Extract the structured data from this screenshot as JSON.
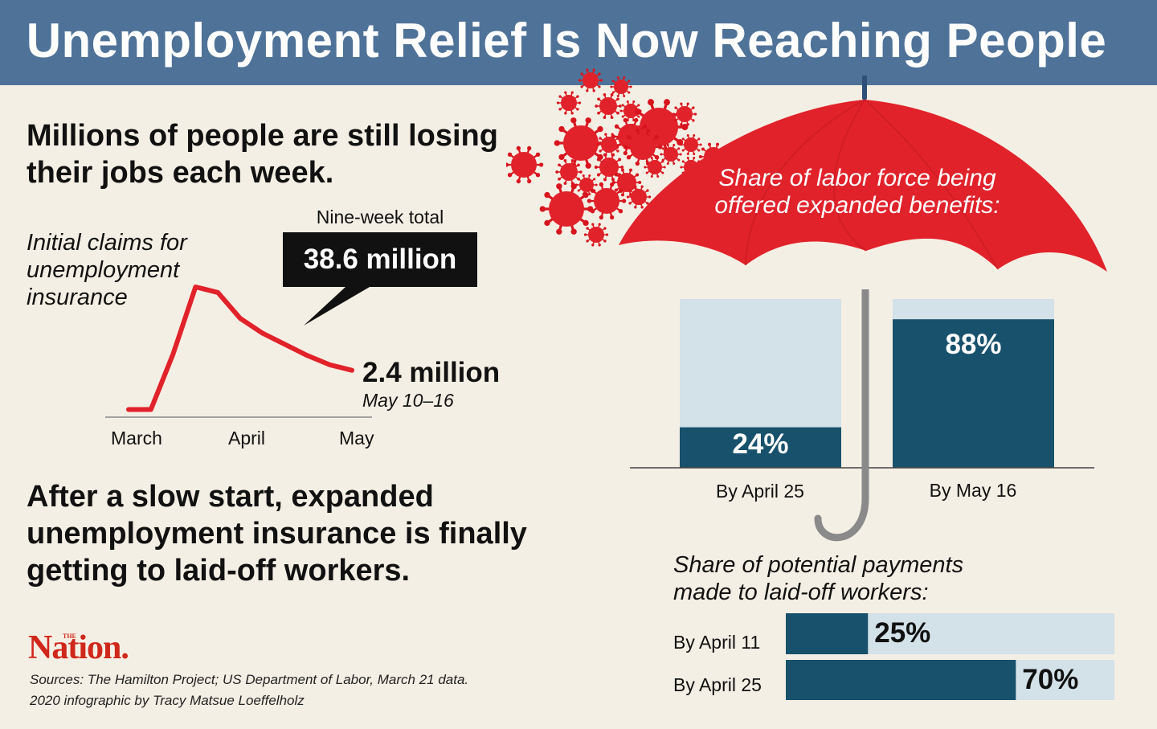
{
  "title": "Unemployment Relief Is Now Reaching People",
  "subhead_1": "Millions of people are still losing their jobs each week.",
  "subhead_2": "After a slow start, expanded unemployment insurance is finally getting to laid-off workers.",
  "colors": {
    "banner": "#4f7298",
    "accent_red": "#e1222b",
    "dark_teal": "#18516c",
    "light_blue": "#d3e1e8",
    "background": "#f4efe4"
  },
  "chart_data": [
    {
      "type": "line",
      "label": "Initial claims for unemployment insurance",
      "x_ticks": [
        "March",
        "April",
        "May"
      ],
      "values_millions": [
        0.28,
        0.28,
        3.3,
        6.9,
        6.6,
        5.2,
        4.4,
        3.8,
        3.2,
        2.7,
        2.4
      ],
      "callout_label": "Nine-week total",
      "callout_value": "38.6 million",
      "end_value": "2.4 million",
      "end_date": "May 10–16",
      "ylim": [
        0,
        7.5
      ]
    },
    {
      "type": "bar",
      "title": "Share of labor force being offered expanded benefits:",
      "categories": [
        "By April 25",
        "By May 16"
      ],
      "values": [
        24,
        88
      ],
      "value_labels": [
        "24%",
        "88%"
      ],
      "ylim": [
        0,
        100
      ]
    },
    {
      "type": "bar",
      "orientation": "horizontal",
      "title": "Share of potential payments made to laid-off workers:",
      "categories": [
        "By April 11",
        "By April 25"
      ],
      "values": [
        25,
        70
      ],
      "value_labels": [
        "25%",
        "70%"
      ],
      "xlim": [
        0,
        100
      ]
    }
  ],
  "logo": {
    "small": "THE",
    "name": "Nation."
  },
  "sources": "Sources: The Hamilton Project; US Department of Labor, March 21 data.",
  "credit": "2020 infographic by Tracy Matsue Loeffelholz"
}
